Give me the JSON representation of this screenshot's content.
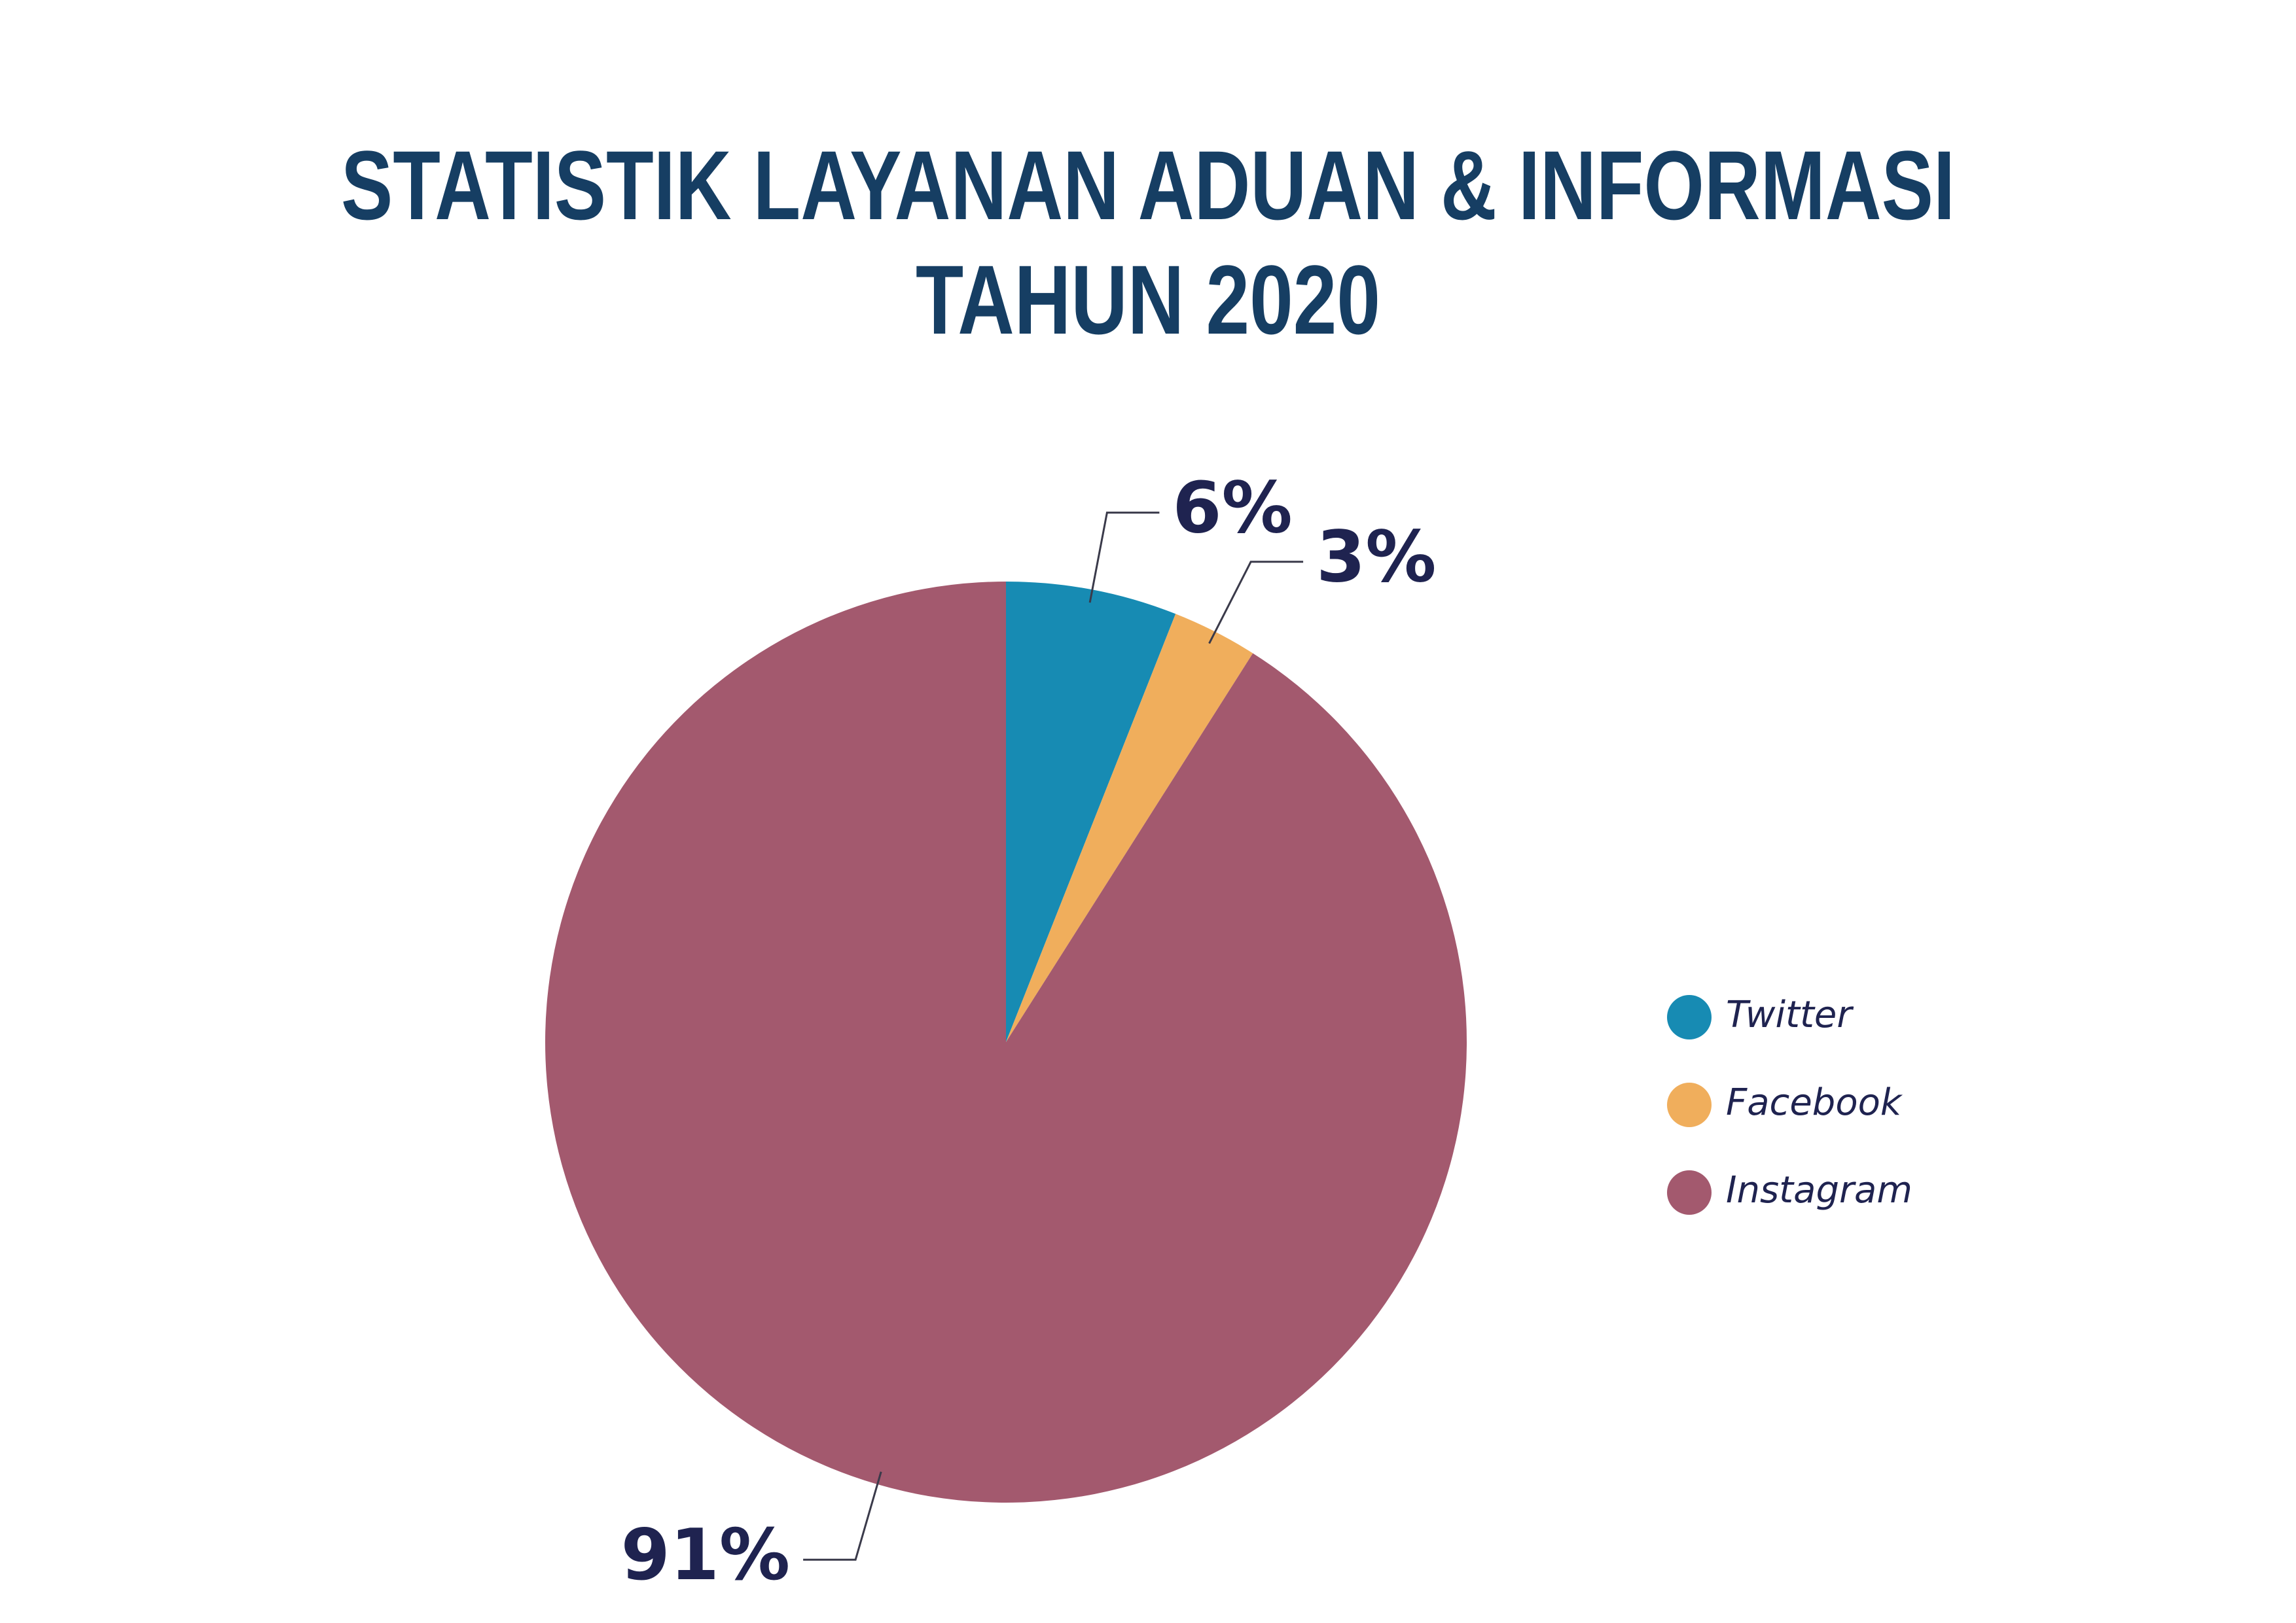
{
  "chart_data": {
    "type": "pie",
    "title": [
      "STATISTIK LAYANAN ADUAN & INFORMASI",
      "TAHUN 2020"
    ],
    "categories": [
      "Twitter",
      "Facebook",
      "Instagram"
    ],
    "values": [
      6,
      3,
      91
    ],
    "value_labels": [
      "6%",
      "3%",
      "91%"
    ],
    "colors": [
      "#178bb3",
      "#f0ae5c",
      "#a3596e"
    ],
    "legend": "right"
  }
}
